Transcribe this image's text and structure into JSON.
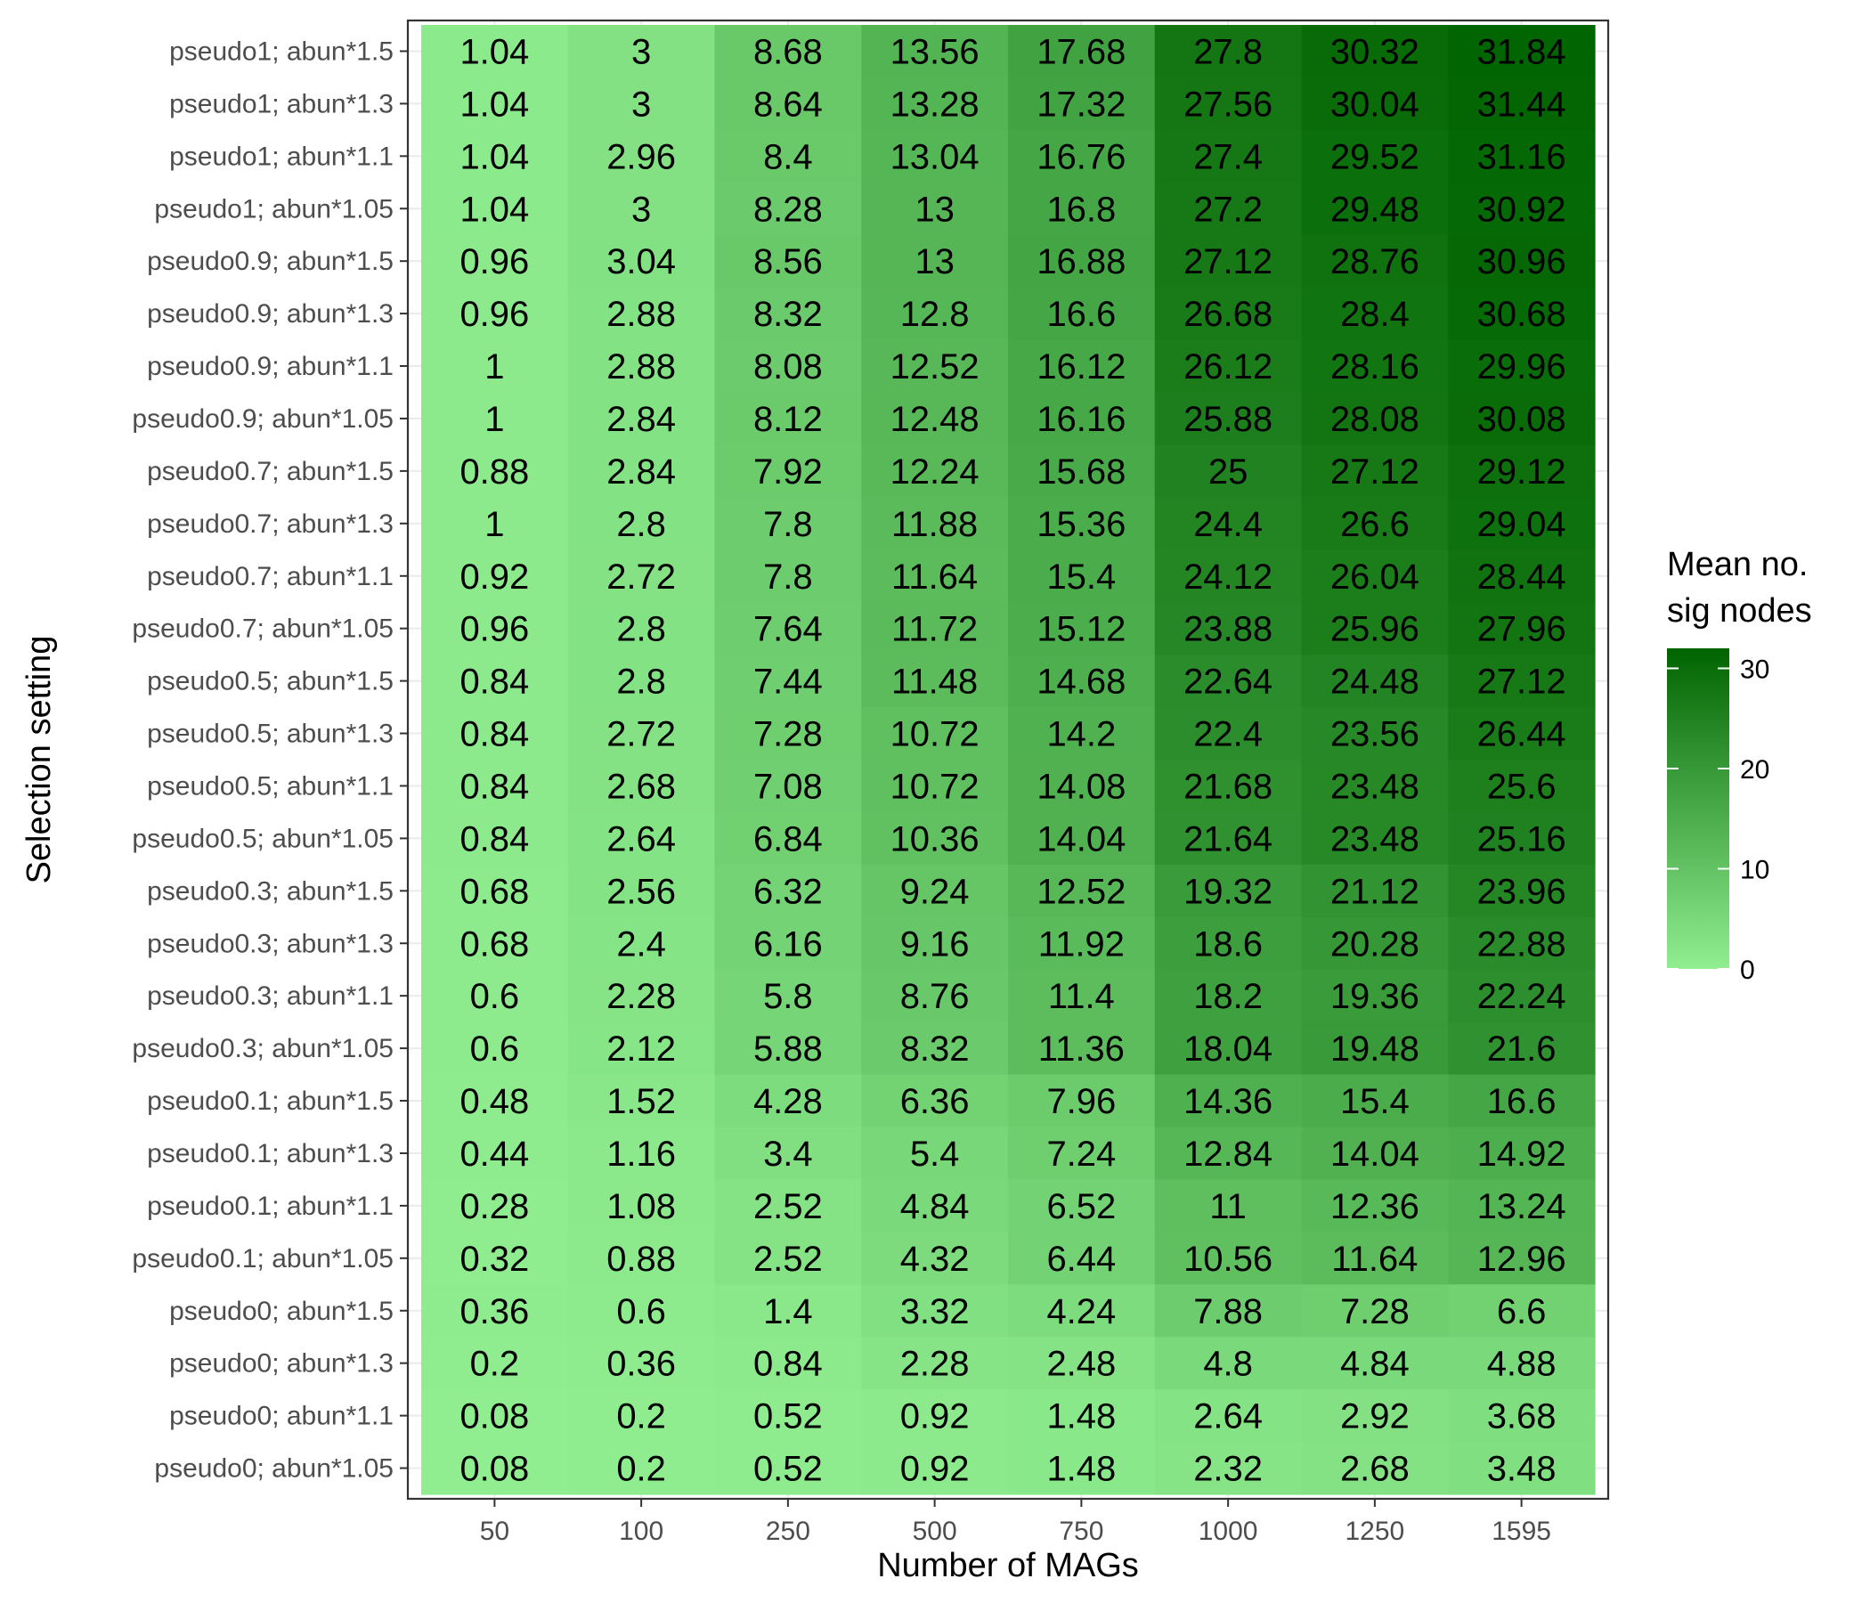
{
  "chart_data": {
    "type": "heatmap",
    "xlabel": "Number of MAGs",
    "ylabel": "Selection setting",
    "x_categories": [
      "50",
      "100",
      "250",
      "500",
      "750",
      "1000",
      "1250",
      "1595"
    ],
    "y_categories": [
      "pseudo1; abun*1.5",
      "pseudo1; abun*1.3",
      "pseudo1; abun*1.1",
      "pseudo1; abun*1.05",
      "pseudo0.9; abun*1.5",
      "pseudo0.9; abun*1.3",
      "pseudo0.9; abun*1.1",
      "pseudo0.9; abun*1.05",
      "pseudo0.7; abun*1.5",
      "pseudo0.7; abun*1.3",
      "pseudo0.7; abun*1.1",
      "pseudo0.7; abun*1.05",
      "pseudo0.5; abun*1.5",
      "pseudo0.5; abun*1.3",
      "pseudo0.5; abun*1.1",
      "pseudo0.5; abun*1.05",
      "pseudo0.3; abun*1.5",
      "pseudo0.3; abun*1.3",
      "pseudo0.3; abun*1.1",
      "pseudo0.3; abun*1.05",
      "pseudo0.1; abun*1.5",
      "pseudo0.1; abun*1.3",
      "pseudo0.1; abun*1.1",
      "pseudo0.1; abun*1.05",
      "pseudo0; abun*1.5",
      "pseudo0; abun*1.3",
      "pseudo0; abun*1.1",
      "pseudo0; abun*1.05"
    ],
    "values": [
      [
        "1.04",
        "3",
        "8.68",
        "13.56",
        "17.68",
        "27.8",
        "30.32",
        "31.84"
      ],
      [
        "1.04",
        "3",
        "8.64",
        "13.28",
        "17.32",
        "27.56",
        "30.04",
        "31.44"
      ],
      [
        "1.04",
        "2.96",
        "8.4",
        "13.04",
        "16.76",
        "27.4",
        "29.52",
        "31.16"
      ],
      [
        "1.04",
        "3",
        "8.28",
        "13",
        "16.8",
        "27.2",
        "29.48",
        "30.92"
      ],
      [
        "0.96",
        "3.04",
        "8.56",
        "13",
        "16.88",
        "27.12",
        "28.76",
        "30.96"
      ],
      [
        "0.96",
        "2.88",
        "8.32",
        "12.8",
        "16.6",
        "26.68",
        "28.4",
        "30.68"
      ],
      [
        "1",
        "2.88",
        "8.08",
        "12.52",
        "16.12",
        "26.12",
        "28.16",
        "29.96"
      ],
      [
        "1",
        "2.84",
        "8.12",
        "12.48",
        "16.16",
        "25.88",
        "28.08",
        "30.08"
      ],
      [
        "0.88",
        "2.84",
        "7.92",
        "12.24",
        "15.68",
        "25",
        "27.12",
        "29.12"
      ],
      [
        "1",
        "2.8",
        "7.8",
        "11.88",
        "15.36",
        "24.4",
        "26.6",
        "29.04"
      ],
      [
        "0.92",
        "2.72",
        "7.8",
        "11.64",
        "15.4",
        "24.12",
        "26.04",
        "28.44"
      ],
      [
        "0.96",
        "2.8",
        "7.64",
        "11.72",
        "15.12",
        "23.88",
        "25.96",
        "27.96"
      ],
      [
        "0.84",
        "2.8",
        "7.44",
        "11.48",
        "14.68",
        "22.64",
        "24.48",
        "27.12"
      ],
      [
        "0.84",
        "2.72",
        "7.28",
        "10.72",
        "14.2",
        "22.4",
        "23.56",
        "26.44"
      ],
      [
        "0.84",
        "2.68",
        "7.08",
        "10.72",
        "14.08",
        "21.68",
        "23.48",
        "25.6"
      ],
      [
        "0.84",
        "2.64",
        "6.84",
        "10.36",
        "14.04",
        "21.64",
        "23.48",
        "25.16"
      ],
      [
        "0.68",
        "2.56",
        "6.32",
        "9.24",
        "12.52",
        "19.32",
        "21.12",
        "23.96"
      ],
      [
        "0.68",
        "2.4",
        "6.16",
        "9.16",
        "11.92",
        "18.6",
        "20.28",
        "22.88"
      ],
      [
        "0.6",
        "2.28",
        "5.8",
        "8.76",
        "11.4",
        "18.2",
        "19.36",
        "22.24"
      ],
      [
        "0.6",
        "2.12",
        "5.88",
        "8.32",
        "11.36",
        "18.04",
        "19.48",
        "21.6"
      ],
      [
        "0.48",
        "1.52",
        "4.28",
        "6.36",
        "7.96",
        "14.36",
        "15.4",
        "16.6"
      ],
      [
        "0.44",
        "1.16",
        "3.4",
        "5.4",
        "7.24",
        "12.84",
        "14.04",
        "14.92"
      ],
      [
        "0.28",
        "1.08",
        "2.52",
        "4.84",
        "6.52",
        "11",
        "12.36",
        "13.24"
      ],
      [
        "0.32",
        "0.88",
        "2.52",
        "4.32",
        "6.44",
        "10.56",
        "11.64",
        "12.96"
      ],
      [
        "0.36",
        "0.6",
        "1.4",
        "3.32",
        "4.24",
        "7.88",
        "7.28",
        "6.6"
      ],
      [
        "0.2",
        "0.36",
        "0.84",
        "2.28",
        "2.48",
        "4.8",
        "4.84",
        "4.88"
      ],
      [
        "0.08",
        "0.2",
        "0.52",
        "0.92",
        "1.48",
        "2.64",
        "2.92",
        "3.68"
      ],
      [
        "0.08",
        "0.2",
        "0.52",
        "0.92",
        "1.48",
        "2.32",
        "2.68",
        "3.48"
      ]
    ],
    "color_scale": {
      "low": "#90EE90",
      "high": "#006400",
      "min": 0,
      "max": 32
    },
    "legend": {
      "title_line1": "Mean no.",
      "title_line2": "sig nodes",
      "ticks": [
        "0",
        "10",
        "20",
        "30"
      ],
      "placement": "right"
    },
    "grid": true
  }
}
